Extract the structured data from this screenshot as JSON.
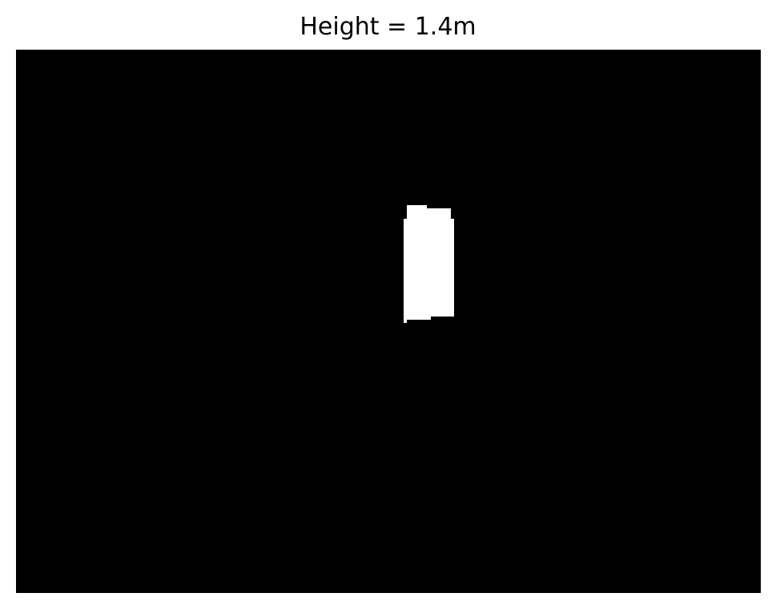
{
  "figure": {
    "title": "Height = 1.4m"
  },
  "image": {
    "kind": "binary-mask",
    "background_color": "#000000",
    "foreground_color": "#ffffff"
  }
}
